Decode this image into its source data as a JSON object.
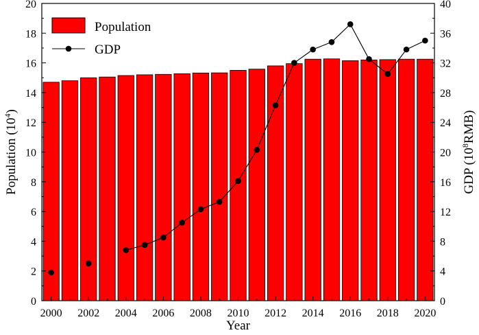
{
  "chart_data": {
    "type": "bar",
    "title": "",
    "categories": [
      "2000",
      "2001",
      "2002",
      "2003",
      "2004",
      "2005",
      "2006",
      "2007",
      "2008",
      "2009",
      "2010",
      "2011",
      "2012",
      "2013",
      "2014",
      "2015",
      "2016",
      "2017",
      "2018",
      "2019",
      "2020"
    ],
    "x_tick_labels": [
      "2000",
      "2002",
      "2004",
      "2006",
      "2008",
      "2010",
      "2012",
      "2014",
      "2016",
      "2018",
      "2020"
    ],
    "xlabel": "Year",
    "ylabel": {
      "base": "Population (10",
      "sup": "4",
      "tail": ")"
    },
    "y2label": {
      "base": "GDP (10",
      "sup": "8",
      "tail": "RMB)"
    },
    "ylim": [
      0,
      20
    ],
    "y_ticks": [
      0,
      2,
      4,
      6,
      8,
      10,
      12,
      14,
      16,
      18,
      20
    ],
    "y2lim": [
      0,
      40
    ],
    "y2_ticks": [
      0,
      4,
      8,
      12,
      16,
      20,
      24,
      28,
      32,
      36,
      40
    ],
    "legend_position": "top-left",
    "series": [
      {
        "name": "Population",
        "type": "bar",
        "axis": "left",
        "color": "#ff0000",
        "values": [
          14.7,
          14.8,
          15.0,
          15.05,
          15.15,
          15.2,
          15.23,
          15.27,
          15.32,
          15.33,
          15.5,
          15.58,
          15.8,
          15.95,
          16.25,
          16.27,
          16.15,
          16.2,
          16.22,
          16.25,
          16.25
        ]
      },
      {
        "name": "GDP",
        "type": "line",
        "axis": "right",
        "color": "#000000",
        "values": [
          3.8,
          null,
          5.0,
          null,
          6.8,
          7.5,
          8.5,
          10.5,
          12.3,
          13.3,
          16.1,
          20.3,
          26.3,
          32.0,
          33.8,
          34.8,
          37.2,
          32.5,
          30.5,
          33.8,
          35.0
        ]
      }
    ]
  }
}
